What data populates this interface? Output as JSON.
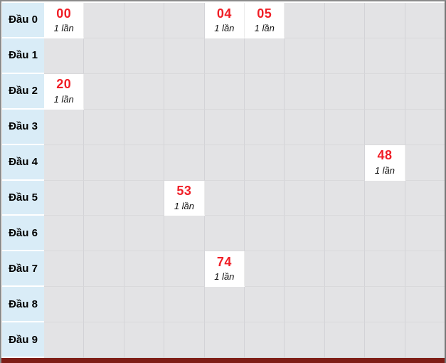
{
  "colors": {
    "label_bg": "#d9ecf7",
    "cell_bg": "#e3e3e5",
    "filled_bg": "#ffffff",
    "number_red": "#f01e26",
    "bottom_bar": "#7e1d16",
    "frame_border": "#8b8b8b",
    "frame_border_dark": "#767676"
  },
  "table": {
    "columns": 10,
    "rows": [
      {
        "label": "Đầu 0",
        "cells": [
          {
            "col": 0,
            "number": "00",
            "count": "1 lần"
          },
          {
            "col": 4,
            "number": "04",
            "count": "1 lần"
          },
          {
            "col": 5,
            "number": "05",
            "count": "1 lần"
          }
        ]
      },
      {
        "label": "Đầu 1",
        "cells": []
      },
      {
        "label": "Đầu 2",
        "cells": [
          {
            "col": 0,
            "number": "20",
            "count": "1 lần"
          }
        ]
      },
      {
        "label": "Đầu 3",
        "cells": []
      },
      {
        "label": "Đầu 4",
        "cells": [
          {
            "col": 8,
            "number": "48",
            "count": "1 lần"
          }
        ]
      },
      {
        "label": "Đầu 5",
        "cells": [
          {
            "col": 3,
            "number": "53",
            "count": "1 lần"
          }
        ]
      },
      {
        "label": "Đầu 6",
        "cells": []
      },
      {
        "label": "Đầu 7",
        "cells": [
          {
            "col": 4,
            "number": "74",
            "count": "1 lần"
          }
        ]
      },
      {
        "label": "Đầu 8",
        "cells": []
      },
      {
        "label": "Đầu 9",
        "cells": []
      }
    ]
  },
  "chart_data": {
    "type": "table",
    "title": "",
    "row_labels": [
      "Đầu 0",
      "Đầu 1",
      "Đầu 2",
      "Đầu 3",
      "Đầu 4",
      "Đầu 5",
      "Đầu 6",
      "Đầu 7",
      "Đầu 8",
      "Đầu 9"
    ],
    "col_count": 10,
    "entries": [
      {
        "number": "00",
        "row": 0,
        "col": 0,
        "count": 1,
        "count_label": "1 lần"
      },
      {
        "number": "04",
        "row": 0,
        "col": 4,
        "count": 1,
        "count_label": "1 lần"
      },
      {
        "number": "05",
        "row": 0,
        "col": 5,
        "count": 1,
        "count_label": "1 lần"
      },
      {
        "number": "20",
        "row": 2,
        "col": 0,
        "count": 1,
        "count_label": "1 lần"
      },
      {
        "number": "48",
        "row": 4,
        "col": 8,
        "count": 1,
        "count_label": "1 lần"
      },
      {
        "number": "53",
        "row": 5,
        "col": 3,
        "count": 1,
        "count_label": "1 lần"
      },
      {
        "number": "74",
        "row": 7,
        "col": 4,
        "count": 1,
        "count_label": "1 lần"
      }
    ]
  }
}
